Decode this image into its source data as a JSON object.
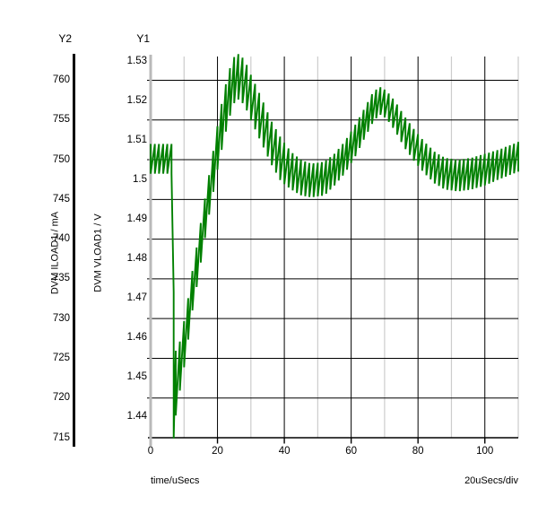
{
  "axes": {
    "y2": {
      "title": "Y2",
      "name": "DVM ILOAD1 / mA",
      "ticks": [
        "760",
        "755",
        "750",
        "745",
        "740",
        "735",
        "730",
        "725",
        "720",
        "715"
      ]
    },
    "y1": {
      "title": "Y1",
      "name": "DVM VLOAD1 / V",
      "ticks": [
        "1.53",
        "1.52",
        "1.51",
        "1.5",
        "1.49",
        "1.48",
        "1.47",
        "1.46",
        "1.45",
        "1.44"
      ]
    },
    "x": {
      "name": "time/uSecs",
      "ticks": [
        "0",
        "20",
        "40",
        "60",
        "80",
        "100"
      ],
      "scale_label": "20uSecs/div"
    }
  },
  "chart_data": {
    "type": "line",
    "title": "",
    "xlabel": "time/uSecs",
    "x_axis": {
      "range_usec": [
        0,
        110
      ],
      "major_ticks": [
        0,
        20,
        40,
        60,
        80,
        100
      ],
      "minor_ticks": [
        10,
        30,
        50,
        70,
        90,
        110
      ],
      "scale_per_div": "20uSecs/div"
    },
    "y1_axis": {
      "label": "DVM VLOAD1 / V",
      "tick_values": [
        1.53,
        1.52,
        1.51,
        1.5,
        1.49,
        1.48,
        1.47,
        1.46,
        1.45,
        1.44
      ]
    },
    "y2_axis": {
      "label": "DVM ILOAD1 / mA",
      "tick_values": [
        760,
        755,
        750,
        745,
        740,
        735,
        730,
        725,
        720,
        715
      ]
    },
    "grid": {
      "horizontal_color": "#000000",
      "vertical_major_color": "#000000",
      "vertical_minor_color": "#cccccc",
      "y1_spine_color": "#b9b9b9",
      "y2_spine_color": "#000000"
    },
    "series": [
      {
        "name": "DVM VLOAD1",
        "axis": "y1",
        "color": "#008000",
        "style": "switching-ripple sawtooth; envelope listed as [t_usec, top_V, bottom_V]",
        "ripple_period_usec": 1.25,
        "envelope": [
          [
            0,
            1.509,
            1.5015
          ],
          [
            6.3,
            1.509,
            1.5015
          ],
          [
            6.55,
            1.5045,
            1.468
          ],
          [
            6.9,
            1.4715,
            1.4345
          ],
          [
            7.4,
            1.4565,
            1.4395
          ],
          [
            7.9,
            1.4575,
            1.4435
          ],
          [
            8.4,
            1.4555,
            1.444
          ],
          [
            9,
            1.4615,
            1.4485
          ],
          [
            10.5,
            1.4655,
            1.4545
          ],
          [
            12,
            1.4745,
            1.4645
          ],
          [
            14,
            1.484,
            1.474
          ],
          [
            16,
            1.494,
            1.484
          ],
          [
            18,
            1.5035,
            1.4935
          ],
          [
            20,
            1.5135,
            1.5025
          ],
          [
            22,
            1.5225,
            1.5105
          ],
          [
            24,
            1.529,
            1.517
          ],
          [
            25.5,
            1.532,
            1.5205
          ],
          [
            27,
            1.5315,
            1.52
          ],
          [
            28.5,
            1.5295,
            1.518
          ],
          [
            30,
            1.5265,
            1.515
          ],
          [
            33,
            1.521,
            1.5095
          ],
          [
            36,
            1.515,
            1.504
          ],
          [
            39,
            1.5105,
            1.4995
          ],
          [
            42,
            1.507,
            1.4975
          ],
          [
            45,
            1.505,
            1.496
          ],
          [
            48,
            1.504,
            1.4955
          ],
          [
            52,
            1.5045,
            1.496
          ],
          [
            55,
            1.5065,
            1.4985
          ],
          [
            58,
            1.5095,
            1.5015
          ],
          [
            61,
            1.5135,
            1.5055
          ],
          [
            64,
            1.518,
            1.5105
          ],
          [
            66.5,
            1.522,
            1.5145
          ],
          [
            68.5,
            1.5235,
            1.5165
          ],
          [
            70.5,
            1.5225,
            1.5155
          ],
          [
            73,
            1.52,
            1.5125
          ],
          [
            76,
            1.516,
            1.508
          ],
          [
            79,
            1.5125,
            1.5045
          ],
          [
            82,
            1.5095,
            1.5015
          ],
          [
            85,
            1.507,
            1.499
          ],
          [
            88,
            1.5055,
            1.4975
          ],
          [
            92,
            1.505,
            1.497
          ],
          [
            96,
            1.5055,
            1.4975
          ],
          [
            100,
            1.5065,
            1.4985
          ],
          [
            104,
            1.5075,
            1.5
          ],
          [
            107,
            1.5085,
            1.501
          ],
          [
            110,
            1.5095,
            1.502
          ]
        ]
      }
    ]
  }
}
